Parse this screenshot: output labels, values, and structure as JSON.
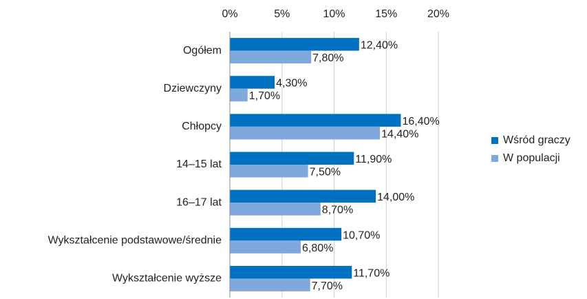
{
  "chart_data": {
    "type": "hbar",
    "categories": [
      "Ogółem",
      "Dziewczyny",
      "Chłopcy",
      "14–15 lat",
      "16–17 lat",
      "Wykształcenie podstawowe/średnie",
      "Wykształcenie wyższe"
    ],
    "series": [
      {
        "name": "Wśród graczy",
        "color": "#0070c0",
        "values": [
          12.4,
          4.3,
          16.4,
          11.9,
          14.0,
          10.7,
          11.7
        ],
        "value_labels": [
          "12,40%",
          "4,30%",
          "16,40%",
          "11,90%",
          "14,00%",
          "10,70%",
          "11,70%"
        ]
      },
      {
        "name": "W populacji",
        "color": "#7fa9dc",
        "values": [
          7.8,
          1.7,
          14.4,
          7.5,
          8.7,
          6.8,
          7.7
        ],
        "value_labels": [
          "7,80%",
          "1,70%",
          "14,40%",
          "7,50%",
          "8,70%",
          "6,80%",
          "7,70%"
        ]
      }
    ],
    "xlim": [
      0,
      20
    ],
    "xticks": [
      {
        "value": 0,
        "label": "0%"
      },
      {
        "value": 5,
        "label": "5%"
      },
      {
        "value": 10,
        "label": "10%"
      },
      {
        "value": 15,
        "label": "15%"
      },
      {
        "value": 20,
        "label": "20%"
      }
    ],
    "grid": true,
    "legend": "right"
  }
}
